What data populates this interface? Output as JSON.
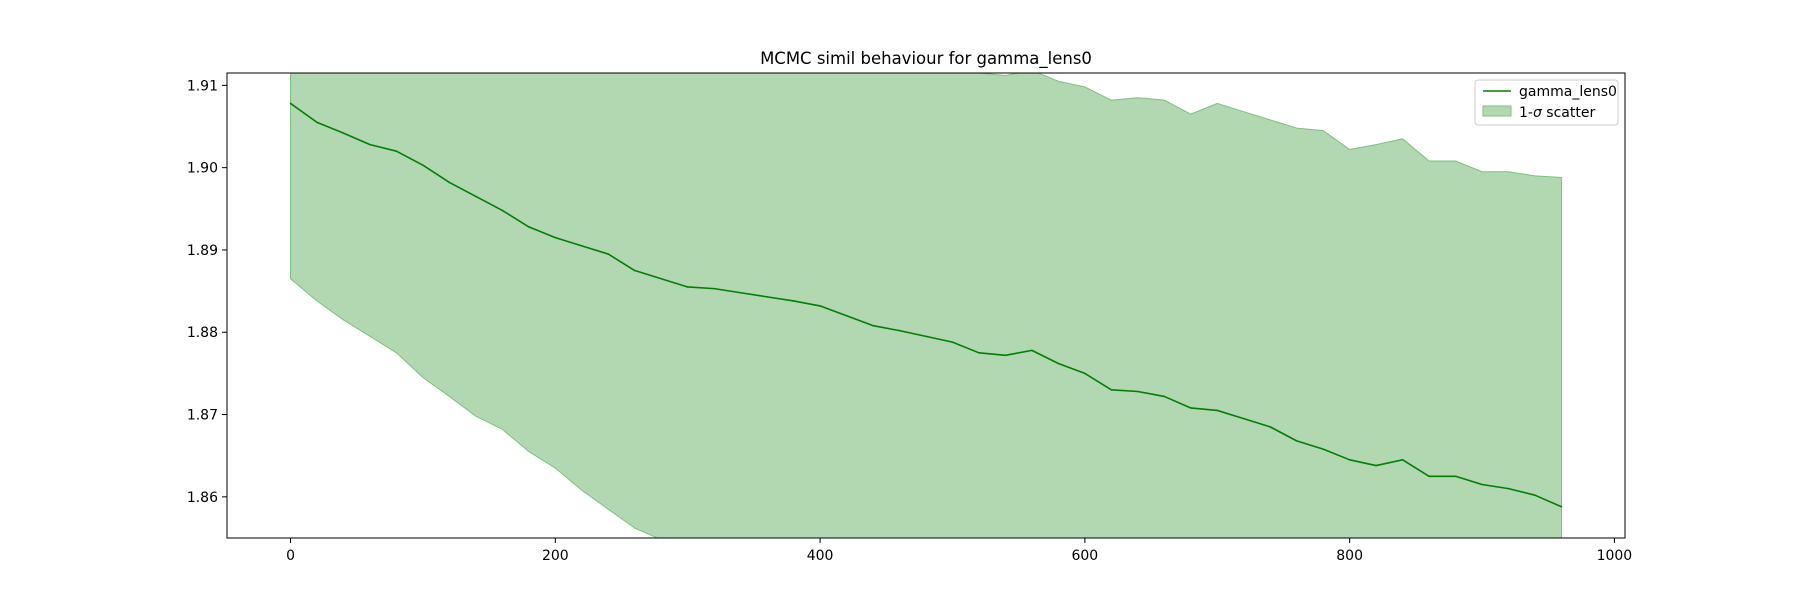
{
  "chart_data": {
    "type": "line",
    "title": "MCMC simil behaviour for gamma_lens0",
    "xlabel": "",
    "ylabel": "",
    "xlim": [
      -48,
      1008
    ],
    "ylim": [
      1.855,
      1.9115
    ],
    "xticks": [
      0,
      200,
      400,
      600,
      800,
      1000
    ],
    "xtick_labels": [
      "0",
      "200",
      "400",
      "600",
      "800",
      "1000"
    ],
    "yticks": [
      1.86,
      1.87,
      1.88,
      1.89,
      1.9,
      1.91
    ],
    "ytick_labels": [
      "1.86",
      "1.87",
      "1.88",
      "1.89",
      "1.90",
      "1.91"
    ],
    "grid": false,
    "legend_position": "top-right",
    "colors": {
      "line": "#008000",
      "band": "#b2d8b2",
      "band_edge": "#7fc07f"
    },
    "series": [
      {
        "name": "gamma_lens0",
        "kind": "line",
        "x": [
          0,
          20,
          40,
          60,
          80,
          100,
          120,
          140,
          160,
          180,
          200,
          220,
          240,
          260,
          280,
          300,
          320,
          340,
          360,
          380,
          400,
          420,
          440,
          460,
          480,
          500,
          520,
          540,
          560,
          580,
          600,
          620,
          640,
          660,
          680,
          700,
          720,
          740,
          760,
          780,
          800,
          820,
          840,
          860,
          880,
          900,
          920,
          940,
          960
        ],
        "y": [
          1.9078,
          1.9055,
          1.9042,
          1.9028,
          1.902,
          1.9003,
          1.8982,
          1.8965,
          1.8948,
          1.8928,
          1.8915,
          1.8905,
          1.8895,
          1.8875,
          1.8865,
          1.8855,
          1.8853,
          1.8848,
          1.8843,
          1.8838,
          1.8832,
          1.882,
          1.8808,
          1.8802,
          1.8795,
          1.8788,
          1.8775,
          1.8772,
          1.8778,
          1.8762,
          1.875,
          1.873,
          1.8728,
          1.8722,
          1.8708,
          1.8705,
          1.8695,
          1.8685,
          1.8668,
          1.8658,
          1.8645,
          1.8638,
          1.8645,
          1.8625,
          1.8625,
          1.8615,
          1.861,
          1.8602,
          1.8588
        ]
      },
      {
        "name": "1-σ scatter",
        "kind": "band",
        "x": [
          0,
          20,
          40,
          60,
          80,
          100,
          120,
          140,
          160,
          180,
          200,
          220,
          240,
          260,
          280,
          300,
          320,
          340,
          360,
          380,
          400,
          420,
          440,
          460,
          480,
          500,
          520,
          540,
          560,
          580,
          600,
          620,
          640,
          660,
          680,
          700,
          720,
          740,
          760,
          780,
          800,
          820,
          840,
          860,
          880,
          900,
          920,
          940,
          960
        ],
        "upper": [
          1.913,
          1.913,
          1.913,
          1.913,
          1.913,
          1.913,
          1.913,
          1.913,
          1.913,
          1.913,
          1.913,
          1.913,
          1.913,
          1.913,
          1.913,
          1.913,
          1.913,
          1.913,
          1.913,
          1.913,
          1.913,
          1.913,
          1.913,
          1.913,
          1.913,
          1.9125,
          1.9115,
          1.9112,
          1.9118,
          1.9105,
          1.9098,
          1.9082,
          1.9085,
          1.9082,
          1.9065,
          1.9078,
          1.9068,
          1.9058,
          1.9048,
          1.9045,
          1.9022,
          1.9028,
          1.9035,
          1.9008,
          1.9008,
          1.8995,
          1.8995,
          1.899,
          1.8988
        ],
        "lower": [
          1.8865,
          1.8838,
          1.8815,
          1.8795,
          1.8775,
          1.8745,
          1.8722,
          1.8698,
          1.8682,
          1.8655,
          1.8635,
          1.8608,
          1.8585,
          1.8562,
          1.8548,
          1.853,
          1.853,
          1.853,
          1.853,
          1.853,
          1.853,
          1.853,
          1.853,
          1.853,
          1.853,
          1.853,
          1.853,
          1.853,
          1.853,
          1.853,
          1.853,
          1.853,
          1.853,
          1.853,
          1.853,
          1.853,
          1.853,
          1.853,
          1.853,
          1.853,
          1.853,
          1.853,
          1.853,
          1.853,
          1.853,
          1.853,
          1.853,
          1.853,
          1.853
        ]
      }
    ],
    "legend": [
      {
        "label": "gamma_lens0",
        "kind": "line"
      },
      {
        "label_prefix": "1-",
        "label_sigma": "σ",
        "label_suffix": " scatter",
        "kind": "band"
      }
    ]
  }
}
